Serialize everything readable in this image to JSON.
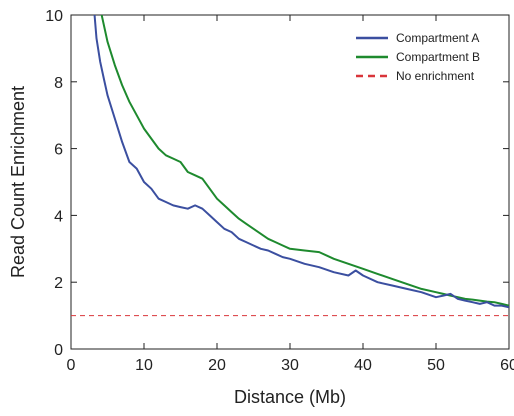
{
  "chart_data": {
    "type": "line",
    "title": "",
    "xlabel": "Distance (Mb)",
    "ylabel": "Read Count Enrichment",
    "xlim": [
      0,
      60
    ],
    "ylim": [
      0,
      10
    ],
    "xticks": [
      0,
      10,
      20,
      30,
      40,
      50,
      60
    ],
    "yticks": [
      0,
      2,
      4,
      6,
      8,
      10
    ],
    "grid": false,
    "legend_position": "top-right",
    "series": [
      {
        "name": "Compartment A",
        "color": "#3b4fa0",
        "style": "solid",
        "x": [
          3,
          3.5,
          4,
          4.5,
          5,
          6,
          7,
          8,
          9,
          10,
          11,
          12,
          13,
          14,
          15,
          16,
          17,
          18,
          19,
          20,
          21,
          22,
          23,
          24,
          25,
          26,
          27,
          28,
          29,
          30,
          32,
          34,
          36,
          38,
          39,
          40,
          42,
          44,
          46,
          48,
          50,
          51,
          52,
          53,
          54,
          55,
          56,
          57,
          58,
          59,
          60
        ],
        "y": [
          10.6,
          9.3,
          8.6,
          8.1,
          7.6,
          6.9,
          6.2,
          5.6,
          5.4,
          5.0,
          4.8,
          4.5,
          4.4,
          4.3,
          4.25,
          4.2,
          4.3,
          4.2,
          4.0,
          3.8,
          3.6,
          3.5,
          3.3,
          3.2,
          3.1,
          3.0,
          2.95,
          2.85,
          2.75,
          2.7,
          2.55,
          2.45,
          2.3,
          2.2,
          2.35,
          2.2,
          2.0,
          1.9,
          1.8,
          1.7,
          1.55,
          1.6,
          1.65,
          1.5,
          1.45,
          1.4,
          1.35,
          1.4,
          1.3,
          1.3,
          1.25
        ]
      },
      {
        "name": "Compartment B",
        "color": "#1e8a2e",
        "style": "solid",
        "x": [
          3,
          4,
          5,
          6,
          7,
          8,
          9,
          10,
          11,
          12,
          13,
          14,
          15,
          16,
          17,
          18,
          19,
          20,
          21,
          22,
          23,
          24,
          25,
          26,
          27,
          28,
          29,
          30,
          32,
          34,
          36,
          38,
          40,
          42,
          44,
          46,
          48,
          50,
          51,
          52,
          53,
          54,
          55,
          56,
          57,
          58,
          59,
          60
        ],
        "y": [
          11.0,
          10.2,
          9.2,
          8.5,
          7.9,
          7.4,
          7.0,
          6.6,
          6.3,
          6.0,
          5.8,
          5.7,
          5.6,
          5.3,
          5.2,
          5.1,
          4.8,
          4.5,
          4.3,
          4.1,
          3.9,
          3.75,
          3.6,
          3.45,
          3.3,
          3.2,
          3.1,
          3.0,
          2.95,
          2.9,
          2.7,
          2.55,
          2.4,
          2.25,
          2.1,
          1.95,
          1.8,
          1.7,
          1.65,
          1.6,
          1.55,
          1.5,
          1.48,
          1.45,
          1.42,
          1.4,
          1.35,
          1.3
        ]
      },
      {
        "name": "No enrichment",
        "color": "#d9353a",
        "style": "dashed",
        "x": [
          0,
          60
        ],
        "y": [
          1,
          1
        ]
      }
    ]
  }
}
